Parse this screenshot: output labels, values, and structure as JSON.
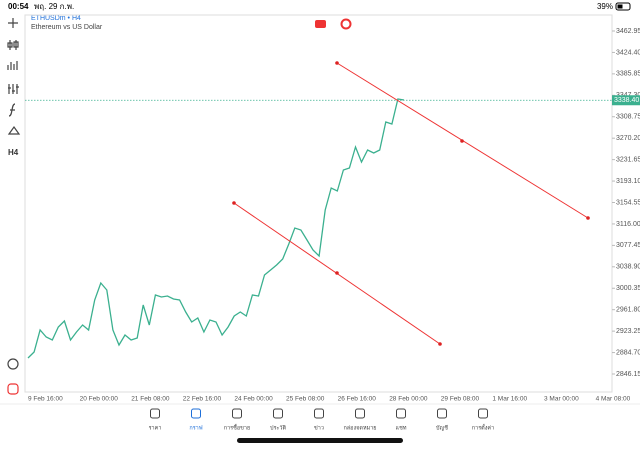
{
  "status_bar": {
    "time": "00:54",
    "date": "พฤ. 29 ก.พ.",
    "battery": "39%"
  },
  "chart": {
    "type": "line",
    "symbol": "ETHUSDm • H4",
    "description": "Ethereum vs US Dollar",
    "color": "#3bb08f",
    "ylim": [
      2813.8,
      3491.7
    ],
    "yticks": [
      3462.95,
      {
        "value": 3424.4,
        "label": "3424.40"
      },
      3385.85,
      {
        "value": 3347.3,
        "label": "3347.30"
      },
      3308.75,
      {
        "value": 3270.2,
        "label": "3270.20"
      },
      3231.65,
      {
        "value": 3193.1,
        "label": "3193.10"
      },
      3154.55,
      {
        "value": 3116,
        "label": "3116.00"
      },
      3077.45,
      {
        "value": 3038.9,
        "label": "3038.90"
      },
      3000.35,
      {
        "value": 2961.8,
        "label": "2961.80"
      },
      2923.25,
      {
        "value": 2884.7,
        "label": "2884.70"
      },
      2846.15
    ],
    "current_price": {
      "value": 3338.4,
      "label": "3338.40"
    },
    "time_axis": [
      "9 Feb 16:00",
      "20 Feb 00:00",
      "21 Feb 08:00",
      "22 Feb 16:00",
      "24 Feb 00:00",
      "25 Feb 08:00",
      "26 Feb 16:00",
      "28 Feb 00:00",
      "29 Feb 08:00",
      "1 Mar 16:00",
      "3 Mar 00:00",
      "4 Mar 08:00"
    ],
    "values": [
      2874.9,
      2885.7,
      2925.3,
      2912.7,
      2907.3,
      2930.7,
      2941.5,
      2907.3,
      2921.7,
      2934.3,
      2925.3,
      2979.2,
      3009.8,
      2997.2,
      2925.3,
      2898.3,
      2916.3,
      2907.3,
      2910.9,
      2970.3,
      2934.3,
      2988.2,
      2984.6,
      2986.4,
      2981.0,
      2979.2,
      2957.6,
      2939.6,
      2946.8,
      2921.7,
      2943.2,
      2939.6,
      2916.3,
      2930.7,
      2950.5,
      2957.6,
      2950.5,
      2988.2,
      2986.4,
      3024.2,
      3033.2,
      3042.2,
      3052.9,
      3079.9,
      3108.7,
      3105.1,
      3087.1,
      3069.1,
      3058.3,
      3141.1,
      3180.6,
      3175.2,
      3213.0,
      3216.6,
      3254.4,
      3227.4,
      3249.0,
      3243.6,
      3249.0,
      3299.3,
      3295.7,
      3340.7,
      3338.9
    ]
  },
  "nav": [
    "ราคา",
    "กราฟ",
    "การซื้อขาย",
    "ประวัติ",
    "ข่าว",
    "กล่องจดหมาย",
    "แชท",
    "บัญชี",
    "การตั้งค่า"
  ]
}
